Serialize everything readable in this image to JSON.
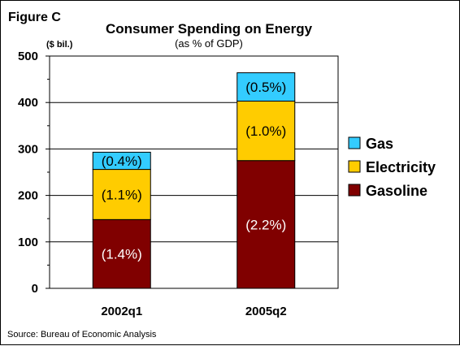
{
  "figure_label": "Figure C",
  "source": "Source:  Bureau of Economic Analysis",
  "chart_data": {
    "type": "bar",
    "stacked": true,
    "title": "Consumer Spending on Energy",
    "subtitle": "(as % of GDP)",
    "units_label": "($ bil.)",
    "categories": [
      "2002q1",
      "2005q2"
    ],
    "ylim": [
      0,
      500
    ],
    "yticks": [
      0,
      100,
      200,
      300,
      400,
      500
    ],
    "grid": true,
    "legend_position": "right",
    "series": [
      {
        "name": "Gasoline",
        "color": "#800000",
        "label_color": "#ffffff",
        "values": [
          148,
          275
        ],
        "labels": [
          "(1.4%)",
          "(2.2%)"
        ]
      },
      {
        "name": "Electricity",
        "color": "#ffcc00",
        "label_color": "#000000",
        "values": [
          108,
          128
        ],
        "labels": [
          "(1.1%)",
          "(1.0%)"
        ]
      },
      {
        "name": "Gas",
        "color": "#33ccff",
        "label_color": "#000000",
        "values": [
          37,
          61
        ],
        "labels": [
          "(0.4%)",
          "(0.5%)"
        ]
      }
    ],
    "legend_order": [
      "Gas",
      "Electricity",
      "Gasoline"
    ]
  }
}
